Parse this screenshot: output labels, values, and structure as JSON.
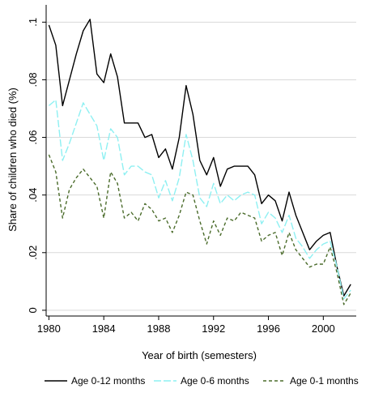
{
  "chart_data": {
    "type": "line",
    "xlabel": "Year of birth (semesters)",
    "ylabel": "Share of children who died (%)",
    "xlim": [
      1979.8,
      2002.4
    ],
    "ylim": [
      -0.002,
      0.106
    ],
    "xticks": [
      1980,
      1984,
      1988,
      1992,
      1996,
      2000
    ],
    "xtick_labels": [
      "1980",
      "1984",
      "1988",
      "1992",
      "1996",
      "2000"
    ],
    "yticks": [
      0,
      0.02,
      0.04,
      0.06,
      0.08,
      0.1
    ],
    "ytick_labels": [
      "0",
      ".02",
      ".04",
      ".06",
      ".08",
      ".1"
    ],
    "grid": "horizontal",
    "legend_position": "bottom",
    "x": [
      1980.0,
      1980.5,
      1981.0,
      1981.5,
      1982.0,
      1982.5,
      1983.0,
      1983.5,
      1984.0,
      1984.5,
      1985.0,
      1985.5,
      1986.0,
      1986.5,
      1987.0,
      1987.5,
      1988.0,
      1988.5,
      1989.0,
      1989.5,
      1990.0,
      1990.5,
      1991.0,
      1991.5,
      1992.0,
      1992.5,
      1993.0,
      1993.5,
      1994.0,
      1994.5,
      1995.0,
      1995.5,
      1996.0,
      1996.5,
      1997.0,
      1997.5,
      1998.0,
      1998.5,
      1999.0,
      1999.5,
      2000.0,
      2000.5,
      2001.0,
      2001.5,
      2002.0
    ],
    "series": [
      {
        "name": "Age 0-12 months",
        "color": "#000000",
        "dash": "solid",
        "values": [
          0.099,
          0.092,
          0.071,
          0.08,
          0.089,
          0.097,
          0.101,
          0.082,
          0.079,
          0.089,
          0.081,
          0.065,
          0.065,
          0.065,
          0.06,
          0.061,
          0.053,
          0.056,
          0.049,
          0.06,
          0.078,
          0.068,
          0.052,
          0.047,
          0.053,
          0.043,
          0.049,
          0.05,
          0.05,
          0.05,
          0.047,
          0.037,
          0.04,
          0.038,
          0.031,
          0.041,
          0.033,
          0.027,
          0.021,
          0.024,
          0.026,
          0.027,
          0.015,
          0.005,
          0.009
        ]
      },
      {
        "name": "Age 0-6 months",
        "color": "#8ef0f2",
        "dash": "long-dash",
        "values": [
          0.071,
          0.073,
          0.052,
          0.058,
          0.065,
          0.072,
          0.068,
          0.064,
          0.052,
          0.063,
          0.06,
          0.047,
          0.05,
          0.05,
          0.048,
          0.047,
          0.039,
          0.045,
          0.038,
          0.046,
          0.061,
          0.052,
          0.039,
          0.036,
          0.044,
          0.037,
          0.04,
          0.038,
          0.04,
          0.041,
          0.04,
          0.03,
          0.034,
          0.032,
          0.027,
          0.033,
          0.025,
          0.022,
          0.018,
          0.021,
          0.023,
          0.024,
          0.015,
          0.004,
          0.007
        ]
      },
      {
        "name": "Age 0-1 months",
        "color": "#4a6b2a",
        "dash": "short-dash",
        "values": [
          0.054,
          0.048,
          0.032,
          0.042,
          0.046,
          0.049,
          0.046,
          0.043,
          0.032,
          0.048,
          0.044,
          0.032,
          0.034,
          0.031,
          0.037,
          0.035,
          0.031,
          0.032,
          0.027,
          0.033,
          0.041,
          0.04,
          0.031,
          0.023,
          0.031,
          0.026,
          0.032,
          0.031,
          0.034,
          0.033,
          0.032,
          0.024,
          0.026,
          0.027,
          0.019,
          0.027,
          0.021,
          0.018,
          0.015,
          0.016,
          0.016,
          0.022,
          0.013,
          0.002,
          0.006
        ]
      }
    ]
  }
}
